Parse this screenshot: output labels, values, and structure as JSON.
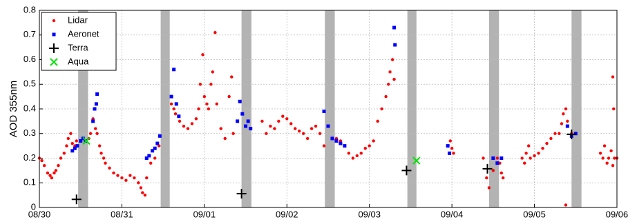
{
  "chart_data": {
    "type": "scatter",
    "ylabel": "AOD 355nm",
    "xlim": [
      0,
      7
    ],
    "ylim": [
      0,
      0.8
    ],
    "xticks": [
      {
        "value": 0,
        "label": "08/30"
      },
      {
        "value": 1,
        "label": "08/31"
      },
      {
        "value": 2,
        "label": "09/01"
      },
      {
        "value": 3,
        "label": "09/02"
      },
      {
        "value": 4,
        "label": "09/03"
      },
      {
        "value": 5,
        "label": "09/04"
      },
      {
        "value": 6,
        "label": "09/05"
      },
      {
        "value": 7,
        "label": "09/06"
      }
    ],
    "yticks": [
      0,
      0.1,
      0.2,
      0.3,
      0.4,
      0.5,
      0.6,
      0.7,
      0.8
    ],
    "grid": true,
    "legend": "upper left",
    "shaded": {
      "color": "#b3b3b3",
      "ranges": [
        [
          0.47,
          0.59
        ],
        [
          1.47,
          1.58
        ],
        [
          2.45,
          2.57
        ],
        [
          3.46,
          3.58
        ],
        [
          4.46,
          4.57
        ],
        [
          5.45,
          5.57
        ],
        [
          6.45,
          6.57
        ]
      ]
    },
    "series": [
      {
        "name": "Lidar",
        "color": "#ff0000",
        "marker": "dot",
        "x": [
          0,
          0.03,
          0.06,
          0.1,
          0.13,
          0.15,
          0.18,
          0.2,
          0.23,
          0.26,
          0.3,
          0.33,
          0.35,
          0.38,
          0.4,
          0.43,
          0.45,
          0.6,
          0.62,
          0.65,
          0.68,
          0.7,
          0.73,
          0.75,
          0.78,
          0.8,
          0.85,
          0.9,
          0.95,
          1.0,
          1.05,
          1.1,
          1.15,
          1.2,
          1.23,
          1.25,
          1.28,
          1.3,
          1.35,
          1.4,
          1.45,
          1.6,
          1.63,
          1.65,
          1.7,
          1.75,
          1.8,
          1.85,
          1.9,
          1.93,
          1.95,
          1.98,
          2.0,
          2.03,
          2.05,
          2.08,
          2.1,
          2.13,
          2.15,
          2.2,
          2.25,
          2.3,
          2.33,
          2.35,
          2.4,
          2.7,
          2.75,
          2.8,
          2.85,
          2.9,
          2.95,
          3.0,
          3.05,
          3.1,
          3.15,
          3.2,
          3.25,
          3.3,
          3.35,
          3.4,
          3.45,
          3.6,
          3.65,
          3.7,
          3.75,
          3.8,
          3.85,
          3.9,
          3.95,
          4.0,
          4.05,
          4.1,
          4.15,
          4.2,
          4.23,
          4.25,
          4.28,
          4.3,
          4.98,
          5.0,
          5.02,
          5.38,
          5.42,
          5.45,
          5.5,
          5.55,
          5.58,
          5.6,
          5.62,
          5.85,
          5.88,
          5.9,
          5.93,
          5.95,
          6.0,
          6.05,
          6.1,
          6.15,
          6.2,
          6.25,
          6.3,
          6.33,
          6.35,
          6.38,
          6.4,
          6.45,
          6.38,
          6.8,
          6.83,
          6.85,
          6.88,
          6.9,
          6.93,
          6.95,
          6.97,
          7.0,
          6.95,
          6.96
        ],
        "values": [
          0.2,
          0.19,
          0.17,
          0.14,
          0.13,
          0.12,
          0.14,
          0.15,
          0.17,
          0.2,
          0.22,
          0.25,
          0.28,
          0.3,
          0.26,
          0.25,
          0.27,
          0.28,
          0.3,
          0.36,
          0.32,
          0.3,
          0.25,
          0.22,
          0.2,
          0.18,
          0.16,
          0.14,
          0.13,
          0.12,
          0.11,
          0.13,
          0.12,
          0.1,
          0.08,
          0.06,
          0.05,
          0.12,
          0.18,
          0.2,
          0.25,
          0.42,
          0.4,
          0.38,
          0.35,
          0.33,
          0.32,
          0.34,
          0.36,
          0.4,
          0.5,
          0.62,
          0.45,
          0.42,
          0.4,
          0.5,
          0.55,
          0.71,
          0.42,
          0.32,
          0.28,
          0.45,
          0.53,
          0.3,
          0.35,
          0.35,
          0.3,
          0.33,
          0.32,
          0.35,
          0.37,
          0.36,
          0.34,
          0.32,
          0.31,
          0.3,
          0.28,
          0.32,
          0.33,
          0.3,
          0.25,
          0.28,
          0.27,
          0.25,
          0.22,
          0.2,
          0.21,
          0.22,
          0.24,
          0.25,
          0.27,
          0.35,
          0.4,
          0.45,
          0.5,
          0.55,
          0.6,
          0.52,
          0.27,
          0.24,
          0.22,
          0.2,
          0.12,
          0.08,
          0.15,
          0.2,
          0.18,
          0.14,
          0.12,
          0.2,
          0.18,
          0.22,
          0.25,
          0.2,
          0.21,
          0.22,
          0.24,
          0.26,
          0.28,
          0.3,
          0.3,
          0.34,
          0.38,
          0.4,
          0.35,
          0.3,
          0.01,
          0.22,
          0.2,
          0.25,
          0.18,
          0.2,
          0.23,
          0.17,
          0.2,
          0.2,
          0.53,
          0.4
        ]
      },
      {
        "name": "Aeronet",
        "color": "#0000ff",
        "marker": "square",
        "x": [
          0.4,
          0.43,
          0.46,
          0.5,
          0.53,
          0.56,
          0.65,
          0.67,
          0.69,
          0.7,
          1.3,
          1.33,
          1.37,
          1.4,
          1.43,
          1.46,
          1.6,
          1.63,
          1.66,
          1.69,
          2.4,
          2.43,
          2.46,
          2.5,
          2.53,
          2.56,
          3.45,
          3.5,
          3.55,
          3.6,
          3.65,
          3.7,
          4.3,
          4.31,
          4.95,
          4.97,
          5.5,
          5.55,
          5.6,
          6.4,
          6.45,
          6.5
        ],
        "values": [
          0.23,
          0.24,
          0.25,
          0.27,
          0.28,
          0.27,
          0.35,
          0.4,
          0.42,
          0.46,
          0.2,
          0.21,
          0.23,
          0.24,
          0.26,
          0.29,
          0.45,
          0.56,
          0.42,
          0.37,
          0.35,
          0.43,
          0.38,
          0.33,
          0.35,
          0.32,
          0.39,
          0.33,
          0.28,
          0.27,
          0.26,
          0.25,
          0.73,
          0.66,
          0.25,
          0.22,
          0.2,
          0.18,
          0.2,
          0.33,
          0.29,
          0.3
        ]
      },
      {
        "name": "Terra",
        "color": "#000000",
        "marker": "plus",
        "x": [
          0.45,
          2.45,
          4.45,
          5.43,
          6.45
        ],
        "values": [
          0.033,
          0.056,
          0.15,
          0.157,
          0.297
        ]
      },
      {
        "name": "Aqua",
        "color": "#00e000",
        "marker": "cross",
        "x": [
          0.57,
          4.57
        ],
        "values": [
          0.27,
          0.19
        ]
      }
    ]
  }
}
